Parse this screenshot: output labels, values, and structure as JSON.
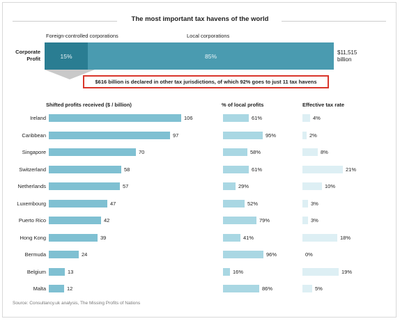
{
  "title": "The most important tax havens of the world",
  "corporate_profit": {
    "row_label_line1": "Corporate",
    "row_label_line2": "Profit",
    "foreign_label": "Foreign-controlled corporations",
    "local_label": "Local corporations",
    "foreign_pct_text": "15%",
    "local_pct_text": "85%",
    "foreign_share": 0.15,
    "total_line1": "$11,515",
    "total_line2": "billion",
    "foreign_color": "#2a7d92",
    "local_color": "#4a9bb0"
  },
  "callout": {
    "text": "$616 billion is declared in other tax jurisdictions, of which 92% goes to just 11 tax havens",
    "border_color": "#d9362b"
  },
  "columns": {
    "shifted": "Shifted profits received ($  / billion)",
    "local": "% of local profits",
    "tax": "Effective tax rate"
  },
  "source": "Source: Consultancy.uk analysis, The Missing Profits of Nations",
  "chart_data": {
    "type": "bar",
    "title": "The most important tax havens of the world",
    "categories": [
      "Ireland",
      "Caribbean",
      "Singapore",
      "Switzerland",
      "Netherlands",
      "Luxembourg",
      "Puerto Rico",
      "Hong Kong",
      "Bermuda",
      "Belgium",
      "Malta"
    ],
    "series": [
      {
        "name": "Shifted profits received ($  / billion)",
        "values": [
          106,
          97,
          70,
          58,
          57,
          47,
          42,
          39,
          24,
          13,
          12
        ],
        "labels": [
          "106",
          "97",
          "70",
          "58",
          "57",
          "47",
          "42",
          "39",
          "24",
          "13",
          "12"
        ],
        "color": "#7fc0d2"
      },
      {
        "name": "% of local profits",
        "values": [
          61,
          95,
          58,
          61,
          29,
          52,
          79,
          41,
          96,
          16,
          86
        ],
        "labels": [
          "61%",
          "95%",
          "58%",
          "61%",
          "29%",
          "52%",
          "79%",
          "41%",
          "96%",
          "16%",
          "86%"
        ],
        "color": "#a9d7e3"
      },
      {
        "name": "Effective tax rate",
        "values": [
          4,
          2,
          8,
          21,
          10,
          3,
          3,
          18,
          0,
          19,
          5
        ],
        "labels": [
          "4%",
          "2%",
          "8%",
          "21%",
          "10%",
          "3%",
          "3%",
          "18%",
          "0%",
          "19%",
          "5%"
        ],
        "color": "#ddeff4"
      }
    ]
  }
}
